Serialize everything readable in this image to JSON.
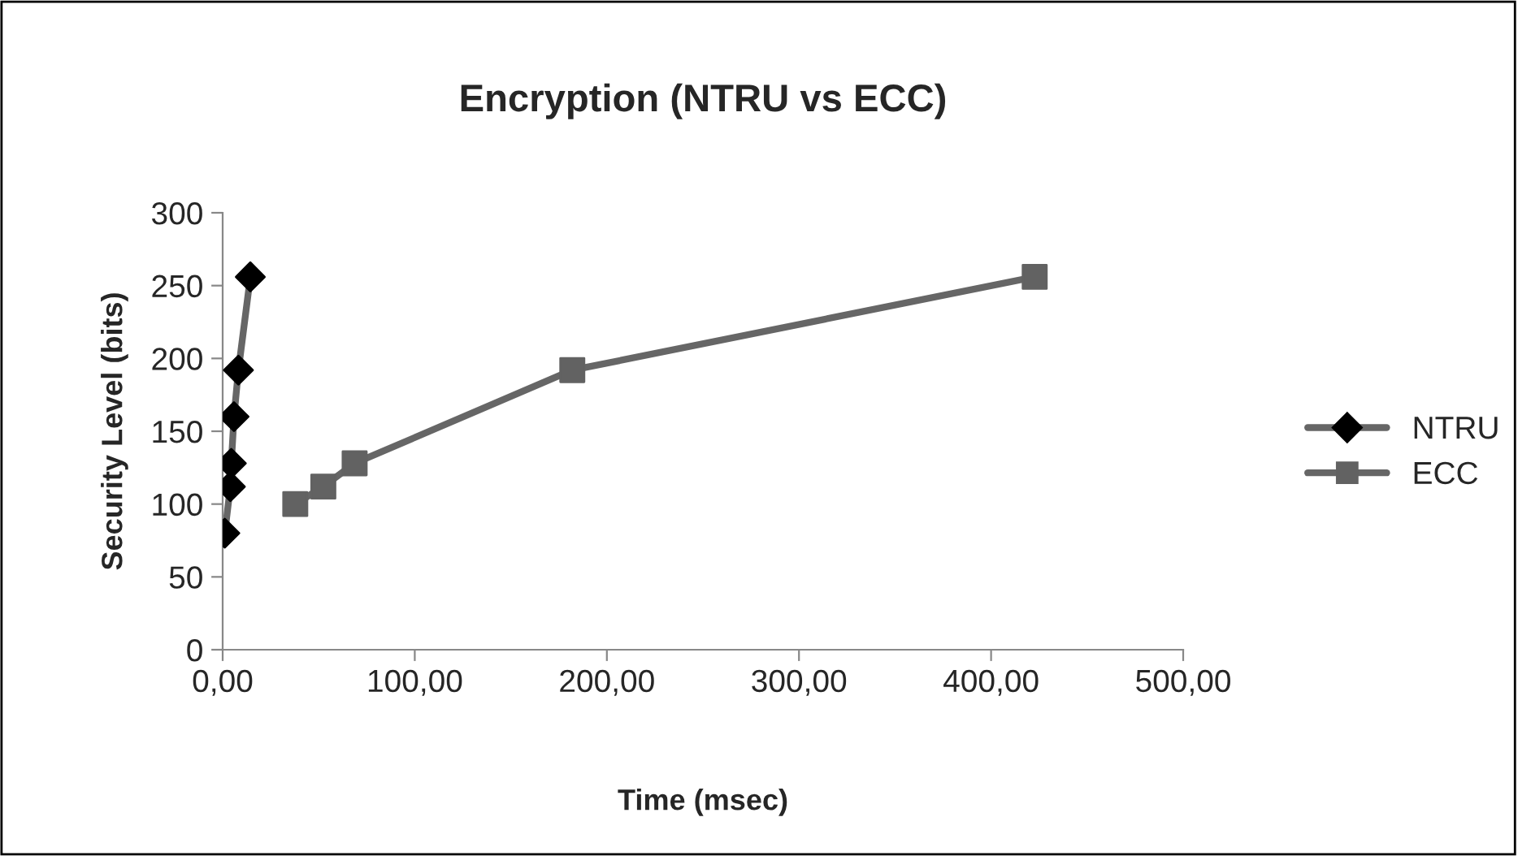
{
  "chart_data": {
    "type": "line",
    "title": "Encryption (NTRU vs ECC)",
    "xlabel": "Time (msec)",
    "ylabel": "Security Level (bits)",
    "series": [
      {
        "name": "NTRU",
        "marker": "diamond",
        "color": "#000000",
        "x": [
          1.1,
          4.0,
          4.5,
          5.9,
          8.2,
          14.4
        ],
        "values": [
          80,
          112,
          128,
          160,
          192,
          256
        ]
      },
      {
        "name": "ECC",
        "marker": "square",
        "color": "#626262",
        "x": [
          37.8,
          52.4,
          68.7,
          182,
          422.7
        ],
        "values": [
          100,
          112,
          128,
          192,
          256
        ]
      }
    ],
    "xlim": [
      0,
      500
    ],
    "xticks": [
      {
        "value": 0,
        "label": "0,00"
      },
      {
        "value": 100,
        "label": "100,00"
      },
      {
        "value": 200,
        "label": "200,00"
      },
      {
        "value": 300,
        "label": "300,00"
      },
      {
        "value": 400,
        "label": "400,00"
      },
      {
        "value": 500,
        "label": "500,00"
      }
    ],
    "ylim": [
      0,
      300
    ],
    "yticks": [
      0,
      50,
      100,
      150,
      200,
      250,
      300
    ],
    "grid": false,
    "legend": "right",
    "line_style": "solid"
  }
}
